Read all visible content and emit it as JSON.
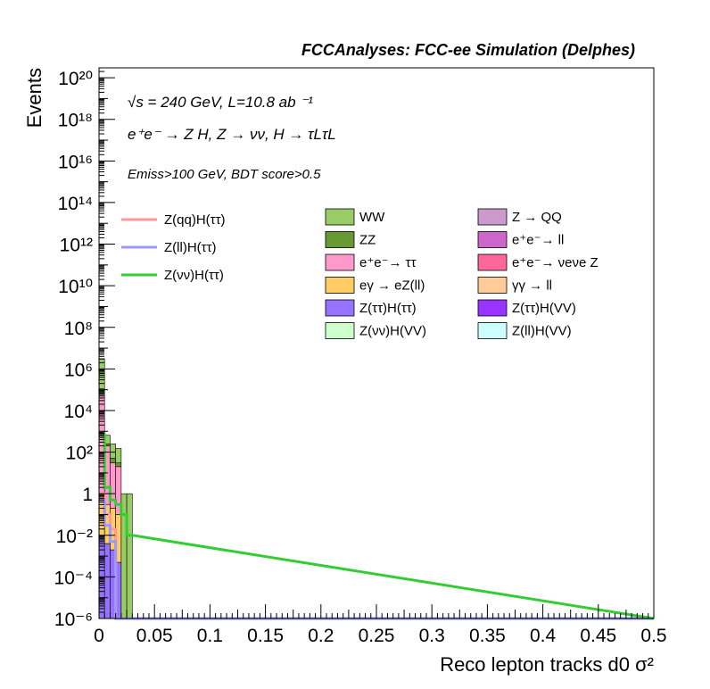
{
  "header": {
    "title": "FCCAnalyses: FCC-ee Simulation (Delphes)"
  },
  "annotations": {
    "energy_lumi": "√s = 240 GeV, L=10.8 ab ⁻¹",
    "process": "e⁺e⁻ → Z H, Z → νν, H → τLτL",
    "selection": "Emiss>100 GeV, BDT score>0.5"
  },
  "colors": {
    "frame": "#000000",
    "background": "#ffffff"
  },
  "chart_data": {
    "type": "bar",
    "xlabel": "Reco lepton tracks d0 σ²",
    "ylabel": "Events",
    "xlim": [
      0,
      0.5
    ],
    "ylim": [
      1e-06,
      3e+20
    ],
    "log_y": true,
    "grid": false,
    "x_ticks": [
      "0",
      "0.05",
      "0.1",
      "0.15",
      "0.2",
      "0.25",
      "0.3",
      "0.35",
      "0.4",
      "0.45",
      "0.5"
    ],
    "y_ticks": [
      "10⁻⁶",
      "10⁻⁴",
      "10⁻²",
      "1",
      "10²",
      "10⁴",
      "10⁶",
      "10⁸",
      "10¹⁰",
      "10¹²",
      "10¹⁴",
      "10¹⁶",
      "10¹⁸",
      "10²⁰"
    ],
    "bin_edges": [
      0.0,
      0.005,
      0.01,
      0.015,
      0.02,
      0.025,
      0.03
    ],
    "stack": [
      {
        "name": "Z(ττ)H(ττ)",
        "color": "#9673ff",
        "values": [
          0.01,
          0.004,
          0.002,
          0.0005,
          0,
          0
        ]
      },
      {
        "name": "eγ → eZ(ll)",
        "color": "#ffcc66",
        "values": [
          1.0,
          0.3,
          0.2,
          0.1,
          0,
          0
        ]
      },
      {
        "name": "e⁺e⁻→ ττ",
        "color": "#ff99cc",
        "values": [
          60000,
          200,
          30,
          20,
          0,
          0
        ]
      },
      {
        "name": "ZZ",
        "color": "#669933",
        "values": [
          50000,
          50,
          20,
          10,
          0,
          0
        ]
      },
      {
        "name": "WW",
        "color": "#99cc66",
        "values": [
          3000000,
          400,
          200,
          120,
          1,
          1
        ]
      }
    ],
    "signals": [
      {
        "name": "Z(qq)H(ττ)",
        "color": "#ff9999",
        "values": [
          1.0,
          0.1,
          0.02,
          0,
          0,
          0
        ]
      },
      {
        "name": "Z(ll)H(ττ)",
        "color": "#9999ff",
        "values": [
          0.5,
          0.03,
          0.005,
          0,
          0,
          0
        ]
      },
      {
        "name": "Z(νν)H(ττ)",
        "color": "#33cc33",
        "values": [
          700,
          2,
          0.5,
          0.3,
          0.1,
          0.01
        ]
      }
    ],
    "legend": [
      {
        "label": "WW",
        "color": "#99cc66"
      },
      {
        "label": "Z → QQ",
        "color": "#cc99cc"
      },
      {
        "label": "ZZ",
        "color": "#669933"
      },
      {
        "label": "e⁺e⁻→ ll",
        "color": "#cc66cc"
      },
      {
        "label": "e⁺e⁻→ ττ",
        "color": "#ff99cc"
      },
      {
        "label": "e⁺e⁻→ νeνe Z",
        "color": "#ff6699"
      },
      {
        "label": "eγ → eZ(ll)",
        "color": "#ffcc66"
      },
      {
        "label": "γγ → ll",
        "color": "#ffcc99"
      },
      {
        "label": "Z(ττ)H(ττ)",
        "color": "#9673ff"
      },
      {
        "label": "Z(ττ)H(VV)",
        "color": "#9933ff"
      },
      {
        "label": "Z(νν)H(VV)",
        "color": "#ccffcc"
      },
      {
        "label": "Z(ll)H(VV)",
        "color": "#ccffff"
      }
    ],
    "signal_legend": [
      {
        "label": "Z(qq)H(ττ)",
        "color": "#ff9999"
      },
      {
        "label": "Z(ll)H(ττ)",
        "color": "#9999ff"
      },
      {
        "label": "Z(νν)H(ττ)",
        "color": "#33cc33"
      }
    ]
  }
}
